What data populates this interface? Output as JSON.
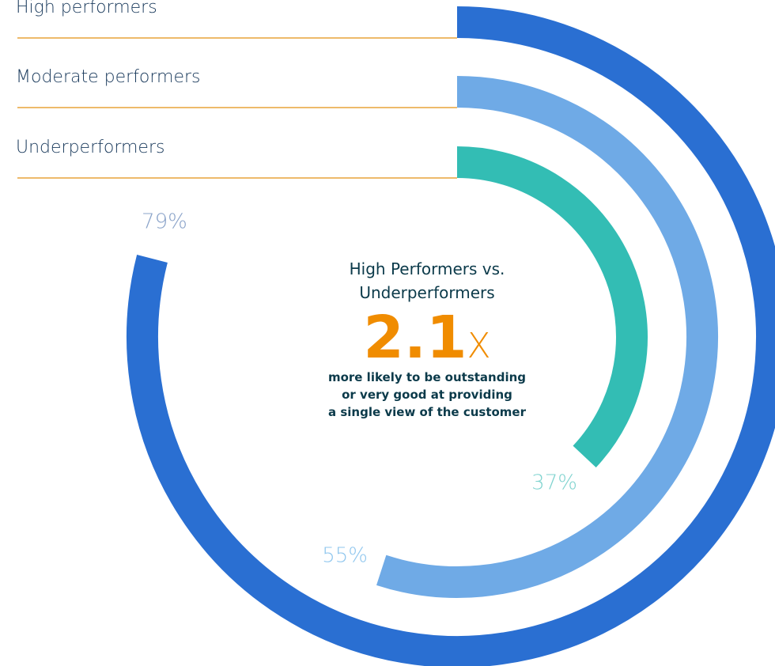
{
  "chart_data": {
    "type": "radial_bar",
    "ylim": [
      0,
      100
    ],
    "series": [
      {
        "name": "High performers",
        "color": "#2a6fd2",
        "values": [
          79
        ],
        "value_labels": [
          "79%"
        ],
        "label_color": "#8aa3c9"
      },
      {
        "name": "Moderate performers",
        "color": "#6faae6",
        "values": [
          55
        ],
        "value_labels": [
          "55%"
        ],
        "label_color": "#8fc6ee"
      },
      {
        "name": "Underperformers",
        "color": "#33bdb4",
        "values": [
          37
        ],
        "value_labels": [
          "37%"
        ],
        "label_color": "#7fd3cf"
      }
    ],
    "annotation": {
      "title_lines": [
        "High Performers vs.",
        "Underperformers"
      ],
      "multiplier": "2.1",
      "unit": "X",
      "note_lines": [
        "more likely to be outstanding",
        "or very good at providing",
        "a single view of the customer"
      ]
    }
  }
}
